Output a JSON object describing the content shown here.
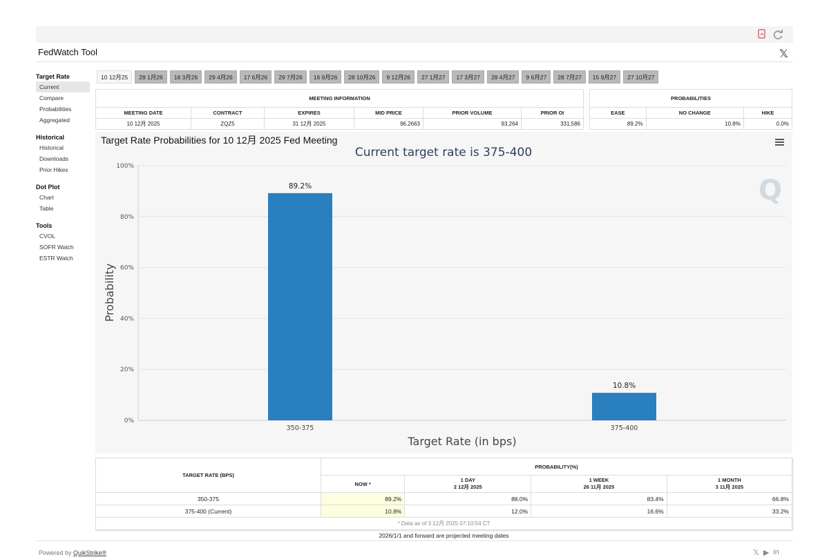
{
  "app": {
    "title": "FedWatch Tool",
    "x_logo": "𝕏"
  },
  "sidebar": [
    {
      "heading": "Target Rate",
      "items": [
        "Current",
        "Compare",
        "Probabilities",
        "Aggregated"
      ]
    },
    {
      "heading": "Historical",
      "items": [
        "Historical",
        "Downloads",
        "Prior Hikes"
      ]
    },
    {
      "heading": "Dot Plot",
      "items": [
        "Chart",
        "Table"
      ]
    },
    {
      "heading": "Tools",
      "items": [
        "CVOL",
        "SOFR Watch",
        "ESTR Watch"
      ]
    }
  ],
  "tabs": [
    "10 12月25",
    "28 1月26",
    "18 3月26",
    "29 4月26",
    "17 6月26",
    "29 7月26",
    "16 9月26",
    "28 10月26",
    "9 12月26",
    "27 1月27",
    "17 3月27",
    "28 4月27",
    "9 6月27",
    "28 7月27",
    "15 9月27",
    "27 10月27"
  ],
  "meeting_info": {
    "title": "MEETING INFORMATION",
    "headers": [
      "MEETING DATE",
      "CONTRACT",
      "EXPIRES",
      "MID PRICE",
      "PRIOR VOLUME",
      "PRIOR OI"
    ],
    "row": [
      "10 12月 2025",
      "ZQZ5",
      "31 12月 2025",
      "96.2663",
      "93,264",
      "331,586"
    ]
  },
  "probabilities": {
    "title": "PROBABILITIES",
    "headers": [
      "EASE",
      "NO CHANGE",
      "HIKE"
    ],
    "row": [
      "89.2%",
      "10.8%",
      "0.0%"
    ]
  },
  "chart_data": {
    "type": "bar",
    "title": "Target Rate Probabilities for 10 12月 2025 Fed Meeting",
    "subtitle": "Current target rate is 375-400",
    "xlabel": "Target Rate (in bps)",
    "ylabel": "Probability",
    "categories": [
      "350-375",
      "375-400"
    ],
    "values": [
      89.2,
      10.8
    ],
    "data_labels": [
      "89.2%",
      "10.8%"
    ],
    "ylim": [
      0,
      100
    ],
    "yticks": [
      "0%",
      "20%",
      "40%",
      "60%",
      "80%",
      "100%"
    ],
    "grid": true,
    "bar_color": "#2a7fbf",
    "watermark": "Q"
  },
  "rate_table": {
    "col_header": "TARGET RATE (BPS)",
    "prob_header": "PROBABILITY(%)",
    "periods": [
      {
        "l1": "NOW *",
        "l2": ""
      },
      {
        "l1": "1 DAY",
        "l2": "2 12月 2025"
      },
      {
        "l1": "1 WEEK",
        "l2": "26 11月 2025"
      },
      {
        "l1": "1 MONTH",
        "l2": "3 11月 2025"
      }
    ],
    "rows": [
      {
        "rate": "350-375",
        "vals": [
          "89.2%",
          "88.0%",
          "83.4%",
          "66.8%"
        ]
      },
      {
        "rate": "375-400 (Current)",
        "vals": [
          "10.8%",
          "12.0%",
          "16.6%",
          "33.2%"
        ]
      }
    ],
    "footnote": "* Data as of 3 12月 2025 07:10:54 CT"
  },
  "forward_note": "2026/1/1 and forward are projected meeting dates",
  "footer": {
    "powered_by": "Powered by",
    "brand": "QuikStrike®"
  }
}
